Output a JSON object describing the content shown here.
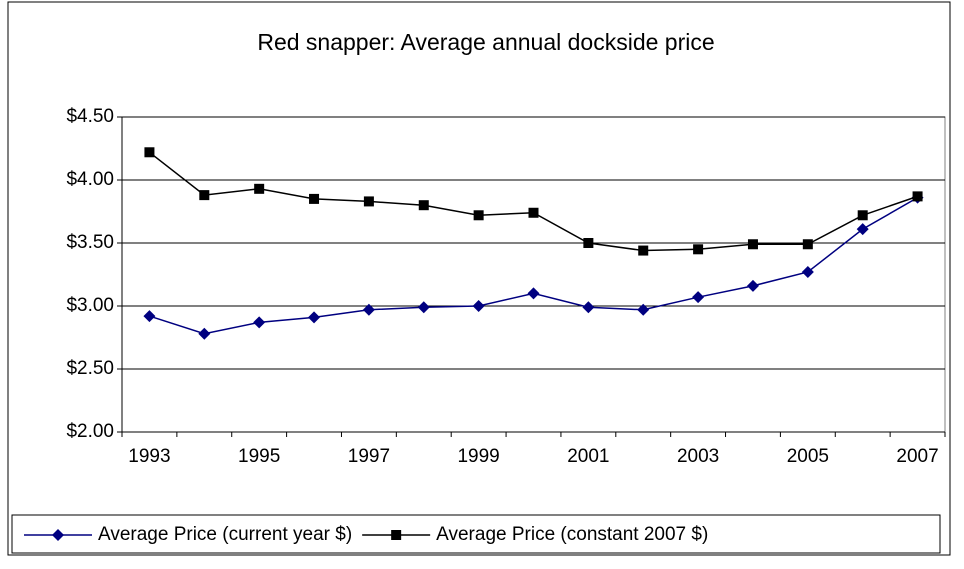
{
  "chart_data": {
    "type": "line",
    "title": "Red snapper: Average annual dockside price",
    "categories": [
      "1993",
      null,
      "1995",
      null,
      "1997",
      null,
      "1999",
      null,
      "2001",
      null,
      "2003",
      null,
      "2005",
      null,
      "2007"
    ],
    "series": [
      {
        "name": "Average Price (current year $)",
        "color": "#000080",
        "marker": "diamond",
        "values": [
          2.92,
          2.78,
          2.87,
          2.91,
          2.97,
          2.99,
          3.0,
          3.1,
          2.99,
          2.97,
          3.07,
          3.16,
          3.27,
          3.61,
          3.86
        ]
      },
      {
        "name": "Average Price (constant 2007 $)",
        "color": "#000000",
        "marker": "square",
        "values": [
          4.22,
          3.88,
          3.93,
          3.85,
          3.83,
          3.8,
          3.72,
          3.74,
          3.5,
          3.44,
          3.45,
          3.49,
          3.49,
          3.72,
          3.87
        ]
      }
    ],
    "ylim": [
      2.0,
      4.5
    ],
    "yticks": [
      {
        "value": 2.0,
        "label": "$2.00"
      },
      {
        "value": 2.5,
        "label": "$2.50"
      },
      {
        "value": 3.0,
        "label": "$3.00"
      },
      {
        "value": 3.5,
        "label": "$3.50"
      },
      {
        "value": 4.0,
        "label": "$4.00"
      },
      {
        "value": 4.5,
        "label": "$4.50"
      }
    ],
    "grid": true,
    "legend": "bottom"
  }
}
